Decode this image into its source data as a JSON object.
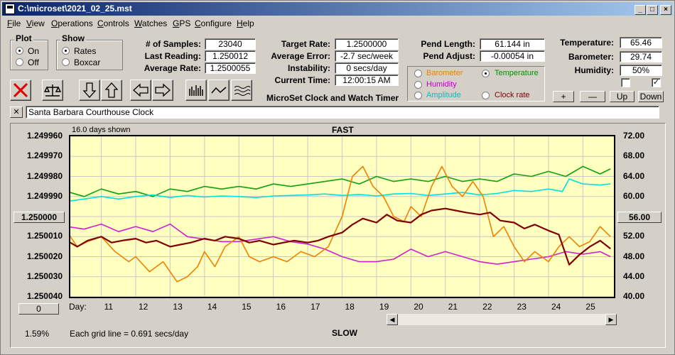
{
  "window": {
    "title": "C:\\microset\\2021_02_25.mst"
  },
  "menu": [
    "File",
    "View",
    "Operations",
    "Controls",
    "Watches",
    "GPS",
    "Configure",
    "Help"
  ],
  "plot_group": {
    "title": "Plot",
    "on": "On",
    "off": "Off",
    "selected": "On"
  },
  "show_group": {
    "title": "Show",
    "rates": "Rates",
    "boxcar": "Boxcar",
    "selected": "Rates"
  },
  "stats_left": {
    "samples_label": "# of Samples:",
    "samples": "23040",
    "last_label": "Last Reading:",
    "last": "1.250012",
    "avg_label": "Average Rate:",
    "avg": "1.2500055"
  },
  "stats_mid": {
    "target_label": "Target Rate:",
    "target": "1.2500000",
    "error_label": "Average Error:",
    "error": "-2.7 sec/week",
    "instab_label": "Instability:",
    "instab": "0 secs/day",
    "time_label": "Current Time:",
    "time": "12:00:15 AM",
    "app_name": "MicroSet Clock and Watch Timer"
  },
  "pend": {
    "length_label": "Pend Length:",
    "length": "61.144 in",
    "adjust_label": "Pend Adjust:",
    "adjust": "-0.00054 in"
  },
  "trace_options": {
    "barometer": "Barometer",
    "temperature": "Temperature",
    "humidity": "Humidity",
    "amplitude": "Amplitude",
    "clock_rate": "Clock rate",
    "selected": "Temperature",
    "colors": {
      "barometer": "#f08000",
      "temperature": "#009000",
      "humidity": "#c000c0",
      "amplitude": "#00c0c0",
      "clock_rate": "#800000"
    }
  },
  "env": {
    "temp_label": "Temperature:",
    "temp": "65.46",
    "baro_label": "Barometer:",
    "baro": "29.74",
    "hum_label": "Humidity:",
    "hum": "50%"
  },
  "scale_buttons": {
    "plus": "+",
    "minus": "—",
    "up": "Up",
    "down": "Down"
  },
  "checkboxes": {
    "first": false,
    "second": true
  },
  "clock_name": {
    "close": "✕",
    "value": "Santa Barbara Courthouse Clock"
  },
  "graph": {
    "days_shown": "16.0 days shown",
    "fast": "FAST",
    "slow": "SLOW",
    "grid_note": "Each grid line = 0.691 secs/day",
    "percent": "1.59%",
    "left_center": "1.250000",
    "right_center": "56.00",
    "left_bottom_btn": "0",
    "day_label": "Day:"
  },
  "chart_data": {
    "type": "line",
    "x_ticks": [
      "11",
      "12",
      "13",
      "14",
      "15",
      "16",
      "17",
      "18",
      "19",
      "20",
      "21",
      "22",
      "23",
      "24",
      "25"
    ],
    "y_left_ticks": [
      "1.249960",
      "1.249970",
      "1.249980",
      "1.249990",
      "1.250000",
      "1.250010",
      "1.250020",
      "1.250030",
      "1.250040"
    ],
    "y_right_ticks": [
      "72.00",
      "68.00",
      "64.00",
      "60.00",
      "56.00",
      "52.00",
      "48.00",
      "44.00",
      "40.00"
    ],
    "xlim": [
      10.1,
      25.9
    ],
    "y_left_lim": [
      1.24996,
      1.25004
    ],
    "y_right_lim": [
      40,
      72
    ],
    "series": [
      {
        "key": "temperature",
        "color": "#10a010",
        "axis": "right",
        "x": [
          10,
          10.5,
          11,
          11.5,
          12,
          12.5,
          13,
          13.5,
          14,
          14.5,
          15,
          15.5,
          16,
          16.5,
          17,
          17.5,
          18,
          18.5,
          19,
          19.5,
          20,
          20.5,
          21,
          21.5,
          22,
          22.5,
          23,
          23.5,
          24,
          24.5,
          25,
          25.5,
          25.8
        ],
        "y": [
          61,
          60,
          61.5,
          60.5,
          61,
          60,
          61.5,
          61,
          62,
          61.5,
          62,
          61.5,
          62.5,
          62,
          62.5,
          63,
          63.5,
          62.5,
          64,
          63,
          63.5,
          63,
          64,
          63,
          63.5,
          63,
          64.5,
          64,
          65,
          64,
          66,
          64.5,
          65.5
        ]
      },
      {
        "key": "amplitude",
        "color": "#00e0e0",
        "axis": "right",
        "x": [
          10,
          10.5,
          11,
          11.5,
          12,
          12.5,
          13,
          13.5,
          14,
          14.5,
          15,
          15.5,
          16,
          16.5,
          17,
          17.5,
          18,
          18.5,
          19,
          19.5,
          20,
          20.5,
          21,
          21.5,
          22,
          22.5,
          23,
          23.5,
          24,
          24.4,
          24.6,
          25,
          25.5,
          25.8
        ],
        "y": [
          59,
          59.5,
          60,
          59.5,
          60,
          60.3,
          59.8,
          60.2,
          59.9,
          60.1,
          60,
          59.8,
          60.1,
          60.2,
          60.3,
          60.5,
          60.2,
          60.4,
          60.1,
          60.5,
          60.6,
          60.2,
          60.5,
          60.8,
          60.3,
          60.6,
          61.2,
          61,
          61.5,
          61,
          63.5,
          62.5,
          62.3,
          62.5
        ]
      },
      {
        "key": "humidity",
        "color": "#d020d0",
        "axis": "right",
        "x": [
          10,
          10.5,
          11,
          11.5,
          12,
          12.5,
          13,
          13.5,
          14,
          14.5,
          15,
          15.5,
          16,
          16.5,
          17,
          17.5,
          18,
          18.5,
          19,
          19.5,
          20,
          20.5,
          21,
          21.5,
          22,
          22.5,
          23,
          23.5,
          24,
          24.5,
          25,
          25.5,
          25.8
        ],
        "y": [
          54,
          53.5,
          54.5,
          53,
          54,
          53,
          54.5,
          52,
          51.5,
          51,
          51,
          51.5,
          52,
          51,
          50.5,
          49.5,
          48,
          47,
          47,
          47.5,
          49.5,
          48,
          49,
          48,
          47,
          46.5,
          47,
          47.5,
          48,
          49,
          48.5,
          49,
          48
        ]
      },
      {
        "key": "barometer",
        "color": "#f08000",
        "axis": "right",
        "x": [
          10,
          10.3,
          10.6,
          11,
          11.4,
          11.8,
          12,
          12.4,
          12.8,
          13.2,
          13.5,
          13.8,
          14,
          14.3,
          14.6,
          15,
          15.3,
          15.6,
          16,
          16.4,
          16.8,
          17.2,
          17.6,
          18,
          18.3,
          18.6,
          18.9,
          19.2,
          19.5,
          19.8,
          20,
          20.3,
          20.6,
          20.9,
          21.2,
          21.5,
          21.8,
          22.1,
          22.4,
          22.7,
          23,
          23.3,
          23.6,
          24,
          24.3,
          24.6,
          24.9,
          25.2,
          25.5,
          25.8
        ],
        "y": [
          53,
          50,
          51,
          52,
          49,
          47,
          48,
          45,
          47,
          43,
          44,
          46,
          49,
          46,
          50,
          52,
          48,
          47,
          48,
          47,
          49,
          48,
          50,
          56,
          64,
          66,
          62,
          60,
          56,
          55,
          58,
          56,
          62,
          66,
          62,
          60,
          63,
          60,
          52,
          54,
          50,
          47,
          49,
          47,
          50,
          52,
          50,
          51,
          54,
          52
        ]
      },
      {
        "key": "clock_rate",
        "color": "#800000",
        "axis": "left",
        "x": [
          10,
          10.3,
          10.6,
          11,
          11.3,
          11.6,
          12,
          12.3,
          12.6,
          13,
          13.3,
          13.6,
          14,
          14.3,
          14.6,
          15,
          15.3,
          15.6,
          16,
          16.3,
          16.6,
          17,
          17.3,
          17.6,
          18,
          18.3,
          18.6,
          19,
          19.3,
          19.6,
          20,
          20.3,
          20.6,
          21,
          21.3,
          21.6,
          22,
          22.3,
          22.6,
          23,
          23.3,
          23.6,
          24,
          24.3,
          24.6,
          24.9,
          25.2,
          25.5,
          25.8
        ],
        "y": [
          1.250012,
          1.250015,
          1.250012,
          1.25001,
          1.250013,
          1.250012,
          1.250011,
          1.250013,
          1.250012,
          1.250015,
          1.250014,
          1.250013,
          1.250011,
          1.250012,
          1.25001,
          1.250011,
          1.250013,
          1.250012,
          1.250014,
          1.250013,
          1.250012,
          1.250013,
          1.250012,
          1.25001,
          1.250008,
          1.250004,
          1.250001,
          1.250003,
          1.249999,
          1.250002,
          1.250003,
          1.249999,
          1.249997,
          1.249996,
          1.249997,
          1.249998,
          1.249999,
          1.249998,
          1.250002,
          1.250003,
          1.250006,
          1.250004,
          1.250007,
          1.250009,
          1.250024,
          1.250019,
          1.250015,
          1.250012,
          1.250016
        ]
      }
    ]
  }
}
